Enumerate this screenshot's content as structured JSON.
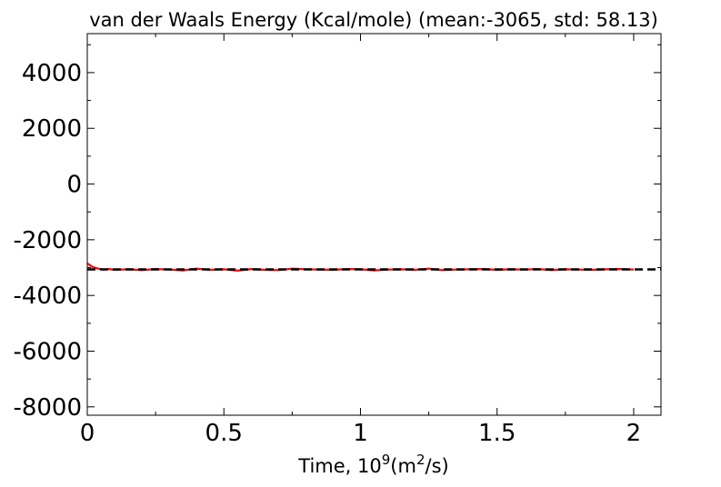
{
  "chart_data": {
    "type": "line",
    "title": "van der Waals Energy (Kcal/mole) (mean:-3065, std: 58.13)",
    "xlabel": {
      "prefix": "Time, 10",
      "exp1": "9",
      "mid": "(m",
      "exp2": "2",
      "suffix": "/s)"
    },
    "ylabel": "",
    "xlim": [
      0,
      2.1
    ],
    "ylim": [
      -8300,
      5400
    ],
    "xticks": [
      {
        "value": 0,
        "label": "0"
      },
      {
        "value": 0.5,
        "label": "0.5"
      },
      {
        "value": 1,
        "label": "1"
      },
      {
        "value": 1.5,
        "label": "1.5"
      },
      {
        "value": 2,
        "label": "2"
      }
    ],
    "yticks": [
      {
        "value": 4000,
        "label": "4000"
      },
      {
        "value": 2000,
        "label": "2000"
      },
      {
        "value": 0,
        "label": "0"
      },
      {
        "value": -2000,
        "label": "-2000"
      },
      {
        "value": -4000,
        "label": "-4000"
      },
      {
        "value": -6000,
        "label": "-6000"
      },
      {
        "value": -8000,
        "label": "-8000"
      }
    ],
    "series": [
      {
        "color": "#ff0000",
        "style": "solid",
        "x": [
          0,
          0.02,
          0.04,
          0.06,
          0.08,
          0.1,
          0.15,
          0.2,
          0.25,
          0.3,
          0.35,
          0.4,
          0.45,
          0.5,
          0.55,
          0.6,
          0.65,
          0.7,
          0.75,
          0.8,
          0.85,
          0.9,
          0.95,
          1.0,
          1.05,
          1.1,
          1.15,
          1.2,
          1.25,
          1.3,
          1.35,
          1.4,
          1.45,
          1.5,
          1.55,
          1.6,
          1.65,
          1.7,
          1.75,
          1.8,
          1.85,
          1.9,
          1.95,
          2.0
        ],
        "y": [
          -2850,
          -2980,
          -3040,
          -3070,
          -3050,
          -3080,
          -3060,
          -3090,
          -3050,
          -3070,
          -3100,
          -3040,
          -3080,
          -3060,
          -3110,
          -3050,
          -3080,
          -3090,
          -3040,
          -3060,
          -3070,
          -3080,
          -3050,
          -3060,
          -3100,
          -3070,
          -3060,
          -3080,
          -3040,
          -3090,
          -3070,
          -3060,
          -3050,
          -3080,
          -3060,
          -3070,
          -3050,
          -3090,
          -3060,
          -3070,
          -3080,
          -3060,
          -3050,
          -3070
        ]
      },
      {
        "color": "#000000",
        "style": "dashed",
        "x": [
          0,
          2.1
        ],
        "y": [
          -3065,
          -3065
        ]
      }
    ],
    "grid": false,
    "legend": "none"
  }
}
